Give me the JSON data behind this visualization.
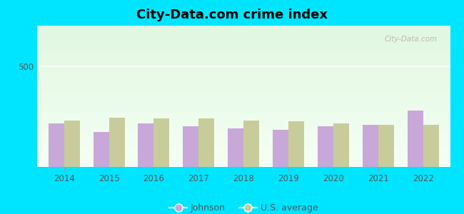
{
  "title": "City-Data.com crime index",
  "years": [
    2014,
    2015,
    2016,
    2017,
    2018,
    2019,
    2020,
    2021,
    2022
  ],
  "johnson": [
    215,
    175,
    215,
    200,
    190,
    185,
    200,
    210,
    280
  ],
  "us_average": [
    230,
    245,
    240,
    240,
    230,
    225,
    215,
    210,
    210
  ],
  "ylim": [
    0,
    700
  ],
  "yticks": [
    0,
    500
  ],
  "johnson_color": "#c8a8d8",
  "us_avg_color": "#c8cc9a",
  "background_outer": "#00e5ff",
  "bar_width": 0.35,
  "title_fontsize": 13,
  "watermark": "City-Data.com",
  "legend_johnson": "Johnson",
  "legend_us": "U.S. average"
}
